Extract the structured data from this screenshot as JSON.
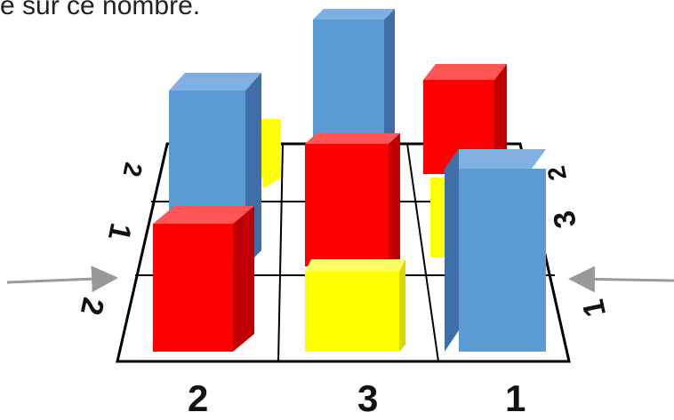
{
  "caption": "e sur ce nombre.",
  "bottom_labels": [
    "2",
    "3",
    "1"
  ],
  "left_labels": {
    "outer": "2",
    "middle": "1",
    "back": "2"
  },
  "right_labels": {
    "outer": "1",
    "middle": "3",
    "back": "2"
  },
  "colors": {
    "blue": "#5b9bd5",
    "red": "#ff0000",
    "yellow": "#ffff00",
    "grid": "#000000",
    "arrow": "#999999"
  },
  "cubes": [
    {
      "id": "back-left-blue",
      "color": "blue"
    },
    {
      "id": "back-left-yellow",
      "color": "yellow"
    },
    {
      "id": "back-middle-blue",
      "color": "blue"
    },
    {
      "id": "back-right-red",
      "color": "red"
    },
    {
      "id": "back-right-yellow",
      "color": "yellow"
    },
    {
      "id": "front-left-red",
      "color": "red"
    },
    {
      "id": "middle-center-red",
      "color": "red"
    },
    {
      "id": "front-center-yellow",
      "color": "yellow"
    },
    {
      "id": "front-right-blue",
      "color": "blue"
    }
  ]
}
